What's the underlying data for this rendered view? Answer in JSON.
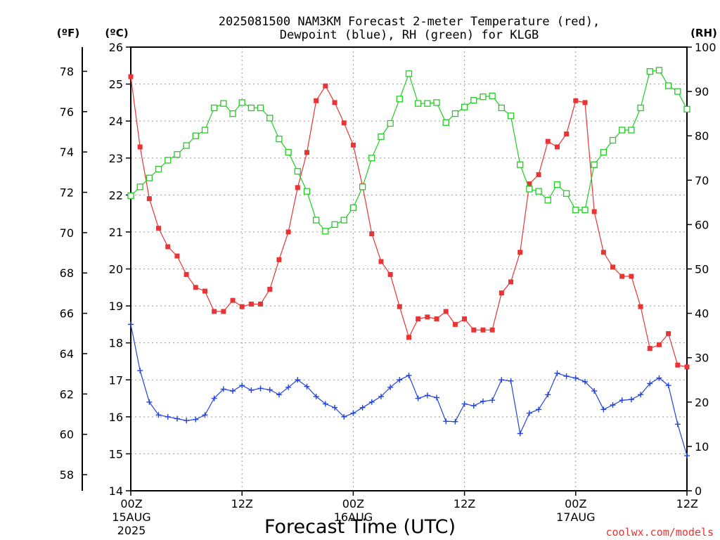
{
  "chart_data": {
    "type": "line",
    "title_line1": "2025081500 NAM3KM Forecast 2-meter Temperature (red),",
    "title_line2": "Dewpoint (blue), RH (green) for KLGB",
    "xlabel": "Forecast Time (UTC)",
    "credit": "coolwx.com/models",
    "x_ticks": [
      {
        "hour": 0,
        "label1": "00Z",
        "label2": "15AUG",
        "label3": "2025"
      },
      {
        "hour": 12,
        "label1": "12Z",
        "label2": "",
        "label3": ""
      },
      {
        "hour": 24,
        "label1": "00Z",
        "label2": "16AUG",
        "label3": ""
      },
      {
        "hour": 36,
        "label1": "12Z",
        "label2": "",
        "label3": ""
      },
      {
        "hour": 48,
        "label1": "00Z",
        "label2": "17AUG",
        "label3": ""
      },
      {
        "hour": 60,
        "label1": "12Z",
        "label2": "",
        "label3": ""
      }
    ],
    "x_range_hours": [
      0,
      60
    ],
    "axis_f": {
      "label": "(ºF)",
      "range": [
        57.2,
        79.2
      ],
      "ticks": [
        "58",
        "60",
        "62",
        "64",
        "66",
        "68",
        "70",
        "72",
        "74",
        "76",
        "78"
      ]
    },
    "axis_c": {
      "label": "(ºC)",
      "range": [
        14,
        26
      ],
      "ticks": [
        "14",
        "15",
        "16",
        "17",
        "18",
        "19",
        "20",
        "21",
        "22",
        "23",
        "24",
        "25",
        "26"
      ]
    },
    "axis_rh": {
      "label": "(RH)",
      "range": [
        0,
        100
      ],
      "ticks": [
        "0",
        "10",
        "20",
        "30",
        "40",
        "50",
        "60",
        "70",
        "80",
        "90",
        "100"
      ]
    },
    "grid": true,
    "colors": {
      "temperature": "#e83434",
      "dewpoint": "#2244dd",
      "rh": "#22cc22",
      "grid": "#9a9a9a"
    },
    "series": [
      {
        "key": "temperature",
        "units": "°C",
        "marker": "filled-square",
        "values": [
          25.2,
          23.3,
          21.9,
          21.1,
          20.6,
          20.35,
          19.85,
          19.5,
          19.4,
          18.85,
          18.85,
          19.15,
          18.98,
          19.05,
          19.05,
          19.45,
          20.25,
          21.0,
          22.2,
          23.15,
          24.55,
          24.95,
          24.5,
          23.95,
          23.35,
          22.25,
          20.95,
          20.2,
          19.85,
          18.98,
          18.15,
          18.65,
          18.7,
          18.65,
          18.85,
          18.5,
          18.65,
          18.35,
          18.35,
          18.35,
          19.35,
          19.65,
          20.45,
          22.3,
          22.55,
          23.45,
          23.3,
          23.65,
          24.55,
          24.5,
          21.55,
          20.45,
          20.05,
          19.8,
          19.8,
          18.98,
          17.85,
          17.95,
          18.25,
          17.4,
          17.35
        ]
      },
      {
        "key": "dewpoint",
        "units": "°C",
        "marker": "plus",
        "values": [
          18.5,
          17.25,
          16.4,
          16.05,
          16.0,
          15.95,
          15.9,
          15.93,
          16.05,
          16.5,
          16.75,
          16.7,
          16.85,
          16.72,
          16.77,
          16.73,
          16.6,
          16.8,
          17.0,
          16.82,
          16.55,
          16.35,
          16.25,
          16.0,
          16.1,
          16.25,
          16.4,
          16.55,
          16.8,
          17.0,
          17.12,
          16.5,
          16.58,
          16.52,
          15.88,
          15.87,
          16.35,
          16.3,
          16.42,
          16.45,
          17.0,
          16.97,
          15.55,
          16.1,
          16.2,
          16.6,
          17.18,
          17.1,
          17.05,
          16.95,
          16.7,
          16.2,
          16.32,
          16.45,
          16.47,
          16.6,
          16.9,
          17.05,
          16.85,
          15.8,
          14.95
        ]
      },
      {
        "key": "rh",
        "units": "%",
        "marker": "open-square",
        "values": [
          66.5,
          68.5,
          70.5,
          72.5,
          74.5,
          75.8,
          77.8,
          80.0,
          81.3,
          86.3,
          87.3,
          85.0,
          87.5,
          86.3,
          86.3,
          84.0,
          79.3,
          76.3,
          72.0,
          67.5,
          61.0,
          58.5,
          60.0,
          61.0,
          63.8,
          68.5,
          75.0,
          79.8,
          82.8,
          88.3,
          94.0,
          87.3,
          87.3,
          87.5,
          83.0,
          85.0,
          86.5,
          88.0,
          88.8,
          89.0,
          86.3,
          84.5,
          73.5,
          68.0,
          67.5,
          65.5,
          69.0,
          67.0,
          63.3,
          63.3,
          73.5,
          76.3,
          79.0,
          81.3,
          81.3,
          86.3,
          94.5,
          94.8,
          91.3,
          90.0,
          86.0
        ]
      }
    ]
  }
}
